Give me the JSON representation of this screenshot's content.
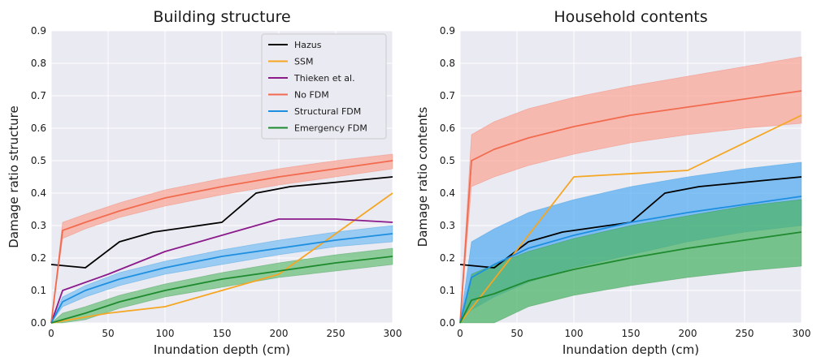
{
  "chart_data": [
    {
      "type": "line",
      "title": "Building structure",
      "xlabel": "Inundation depth (cm)",
      "ylabel": "Damage ratio structure",
      "xlim": [
        0,
        300
      ],
      "ylim": [
        0,
        0.9
      ],
      "xticks": [
        0,
        50,
        100,
        150,
        200,
        250,
        300
      ],
      "yticks": [
        0.0,
        0.1,
        0.2,
        0.3,
        0.4,
        0.5,
        0.6,
        0.7,
        0.8,
        0.9
      ],
      "xtick_labels": [
        "0",
        "50",
        "100",
        "150",
        "200",
        "250",
        "300"
      ],
      "ytick_labels": [
        "0.0",
        "0.1",
        "0.2",
        "0.3",
        "0.4",
        "0.5",
        "0.6",
        "0.7",
        "0.8",
        "0.9"
      ],
      "grid": true,
      "legend_position": "top-right",
      "series": [
        {
          "name": "Hazus",
          "color": "#000000",
          "x": [
            0,
            30,
            60,
            90,
            120,
            150,
            180,
            210,
            240,
            270,
            300
          ],
          "y": [
            0.18,
            0.17,
            0.25,
            0.28,
            0.295,
            0.31,
            0.4,
            0.42,
            0.43,
            0.44,
            0.45
          ]
        },
        {
          "name": "SSM",
          "color": "#f5a623",
          "x": [
            0,
            50,
            100,
            150,
            200,
            300
          ],
          "y": [
            0.0,
            0.03,
            0.05,
            0.1,
            0.15,
            0.4
          ]
        },
        {
          "name": "Thieken et al.",
          "color": "#8b1a8b",
          "x": [
            0,
            10,
            50,
            100,
            150,
            200,
            250,
            300
          ],
          "y": [
            0.0,
            0.1,
            0.15,
            0.22,
            0.27,
            0.32,
            0.32,
            0.31
          ]
        },
        {
          "name": "No FDM",
          "color": "#f26b4f",
          "band_color": "#f9a89a",
          "x": [
            0,
            10,
            30,
            60,
            100,
            150,
            200,
            250,
            300
          ],
          "y": [
            0.0,
            0.285,
            0.31,
            0.345,
            0.385,
            0.42,
            0.45,
            0.475,
            0.5
          ],
          "lower": [
            0.0,
            0.26,
            0.29,
            0.325,
            0.36,
            0.395,
            0.425,
            0.45,
            0.475
          ],
          "upper": [
            0.0,
            0.31,
            0.335,
            0.37,
            0.41,
            0.445,
            0.475,
            0.5,
            0.52
          ]
        },
        {
          "name": "Structural FDM",
          "color": "#1e8fe0",
          "band_color": "#7fc0f2",
          "x": [
            0,
            10,
            30,
            60,
            100,
            150,
            200,
            250,
            300
          ],
          "y": [
            0.0,
            0.065,
            0.1,
            0.135,
            0.17,
            0.205,
            0.23,
            0.255,
            0.275
          ],
          "lower": [
            0.0,
            0.05,
            0.08,
            0.115,
            0.15,
            0.18,
            0.21,
            0.235,
            0.25
          ],
          "upper": [
            0.0,
            0.08,
            0.115,
            0.155,
            0.19,
            0.225,
            0.255,
            0.28,
            0.3
          ]
        },
        {
          "name": "Emergency FDM",
          "color": "#1e8a2e",
          "band_color": "#6fc07e",
          "x": [
            0,
            10,
            30,
            60,
            100,
            150,
            200,
            250,
            300
          ],
          "y": [
            0.0,
            0.01,
            0.03,
            0.065,
            0.1,
            0.135,
            0.16,
            0.185,
            0.205
          ],
          "lower": [
            0.0,
            0.0,
            0.01,
            0.045,
            0.08,
            0.11,
            0.14,
            0.16,
            0.18
          ],
          "upper": [
            0.0,
            0.03,
            0.05,
            0.085,
            0.12,
            0.155,
            0.185,
            0.21,
            0.23
          ]
        }
      ]
    },
    {
      "type": "line",
      "title": "Household contents",
      "xlabel": "Inundation depth (cm)",
      "ylabel": "Damage ratio contents",
      "xlim": [
        0,
        300
      ],
      "ylim": [
        0,
        0.9
      ],
      "xticks": [
        0,
        50,
        100,
        150,
        200,
        250,
        300
      ],
      "yticks": [
        0.0,
        0.1,
        0.2,
        0.3,
        0.4,
        0.5,
        0.6,
        0.7,
        0.8,
        0.9
      ],
      "xtick_labels": [
        "0",
        "50",
        "100",
        "150",
        "200",
        "250",
        "300"
      ],
      "ytick_labels": [
        "0.0",
        "0.1",
        "0.2",
        "0.3",
        "0.4",
        "0.5",
        "0.6",
        "0.7",
        "0.8",
        "0.9"
      ],
      "grid": true,
      "series": [
        {
          "name": "Hazus",
          "color": "#000000",
          "x": [
            0,
            30,
            60,
            90,
            120,
            150,
            180,
            210,
            240,
            270,
            300
          ],
          "y": [
            0.18,
            0.17,
            0.25,
            0.28,
            0.295,
            0.31,
            0.4,
            0.42,
            0.43,
            0.44,
            0.45
          ]
        },
        {
          "name": "SSM",
          "color": "#f5a623",
          "x": [
            0,
            100,
            200,
            300
          ],
          "y": [
            0.0,
            0.45,
            0.47,
            0.64
          ]
        },
        {
          "name": "No FDM",
          "color": "#f26b4f",
          "band_color": "#f9a89a",
          "x": [
            0,
            10,
            30,
            60,
            100,
            150,
            200,
            250,
            300
          ],
          "y": [
            0.0,
            0.5,
            0.535,
            0.57,
            0.605,
            0.64,
            0.665,
            0.69,
            0.715
          ],
          "lower": [
            0.0,
            0.42,
            0.45,
            0.485,
            0.52,
            0.555,
            0.58,
            0.6,
            0.615
          ],
          "upper": [
            0.0,
            0.58,
            0.62,
            0.66,
            0.695,
            0.73,
            0.76,
            0.79,
            0.82
          ]
        },
        {
          "name": "Structural FDM",
          "color": "#1e8fe0",
          "band_color": "#5aaef0",
          "x": [
            0,
            10,
            30,
            60,
            100,
            150,
            200,
            250,
            300
          ],
          "y": [
            0.0,
            0.14,
            0.18,
            0.23,
            0.27,
            0.31,
            0.34,
            0.365,
            0.39
          ],
          "lower": [
            0.0,
            0.04,
            0.08,
            0.125,
            0.17,
            0.21,
            0.25,
            0.28,
            0.3
          ],
          "upper": [
            0.0,
            0.25,
            0.29,
            0.34,
            0.38,
            0.42,
            0.45,
            0.475,
            0.495
          ]
        },
        {
          "name": "Emergency FDM",
          "color": "#1e8a2e",
          "band_color": "#4fb46a",
          "x": [
            0,
            10,
            30,
            60,
            100,
            150,
            200,
            250,
            300
          ],
          "y": [
            0.0,
            0.07,
            0.09,
            0.13,
            0.165,
            0.2,
            0.23,
            0.255,
            0.28
          ],
          "lower": [
            0.0,
            0.0,
            0.0,
            0.05,
            0.085,
            0.115,
            0.14,
            0.16,
            0.175
          ],
          "upper": [
            0.0,
            0.15,
            0.18,
            0.22,
            0.26,
            0.3,
            0.33,
            0.36,
            0.38
          ]
        }
      ]
    }
  ]
}
